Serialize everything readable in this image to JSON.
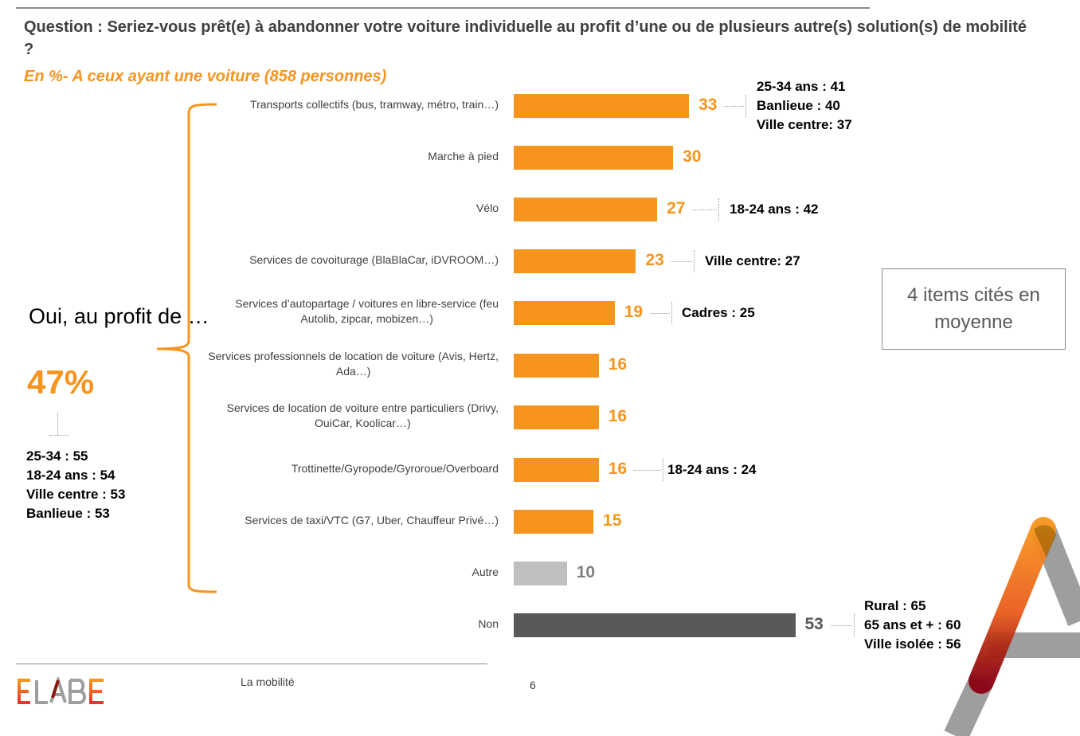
{
  "header": {
    "question": "Question : Seriez-vous prêt(e) à abandonner votre voiture individuelle au profit d’une ou de plusieurs autre(s) solution(s) de mobilité ?",
    "subtitle": "En  %- A ceux ayant une voiture (858 personnes)"
  },
  "summary": {
    "oui_label": "Oui, au profit de …",
    "oui_pct": "47%",
    "oui_callouts": [
      "25-34 : 55",
      "18-24 ans : 54",
      "Ville centre : 53",
      "Banlieue : 53"
    ],
    "avg_box": "4 items cités en moyenne"
  },
  "colors": {
    "accent": "#f7941d",
    "autre": "#bfbfbf",
    "non": "#595959",
    "autre_text": "#7f7f7f",
    "non_text": "#595959"
  },
  "chart_data": {
    "type": "bar",
    "orientation": "horizontal",
    "title": "Question : Seriez-vous prêt(e) à abandonner votre voiture individuelle au profit d’une ou de plusieurs autre(s) solution(s) de mobilité ?",
    "subtitle": "En  %- A ceux ayant une voiture (858 personnes)",
    "xlabel": "",
    "ylabel": "",
    "unit": "%",
    "categories": [
      "Transports collectifs (bus, tramway, métro, train…)",
      "Marche à pied",
      "Vélo",
      "Services de covoiturage (BlaBlaCar, iDVROOM…)",
      "Services d’autopartage / voitures en libre-service (feu Autolib, zipcar, mobizen…)",
      "Services professionnels de location de voiture (Avis, Hertz, Ada…)",
      "Services de location de voiture entre particuliers (Drivy, OuiCar, Koolicar…)",
      "Trottinette/Gyropode/Gyroroue/Overboard",
      "Services de taxi/VTC (G7, Uber, Chauffeur Privé…)",
      "Autre",
      "Non"
    ],
    "values": [
      33,
      30,
      27,
      23,
      19,
      16,
      16,
      16,
      15,
      10,
      53
    ],
    "kinds": [
      "oui",
      "oui",
      "oui",
      "oui",
      "oui",
      "oui",
      "oui",
      "oui",
      "oui",
      "autre",
      "non"
    ],
    "label_lines": [
      [
        "Transports collectifs (bus, tramway, métro, train…)"
      ],
      [
        "Marche à pied"
      ],
      [
        "Vélo"
      ],
      [
        "Services de covoiturage (BlaBlaCar, iDVROOM…)"
      ],
      [
        "Services d’autopartage / voitures en libre-service (feu",
        "Autolib, zipcar, mobizen…)"
      ],
      [
        "Services professionnels de location de voiture (Avis, Hertz,",
        "Ada…)"
      ],
      [
        "Services de location de voiture entre particuliers (Drivy,",
        "OuiCar, Koolicar…)"
      ],
      [
        "Trottinette/Gyropode/Gyroroue/Overboard"
      ],
      [
        "Services de taxi/VTC (G7, Uber, Chauffeur Privé…)"
      ],
      [
        "Autre"
      ],
      [
        "Non"
      ]
    ],
    "callouts": [
      [
        "25-34 ans : 41",
        "Banlieue : 40",
        "Ville centre: 37"
      ],
      [],
      [
        "18-24 ans : 42"
      ],
      [
        "Ville centre: 27"
      ],
      [
        "Cadres : 25"
      ],
      [],
      [],
      [
        "18-24 ans : 24"
      ],
      [],
      [],
      [
        "Rural : 65",
        "65 ans et + : 60",
        "Ville isolée : 56"
      ]
    ],
    "xlim": [
      0,
      60
    ],
    "grid": false,
    "legend": "none"
  },
  "footer": {
    "logo": "ELABE",
    "section": "La mobilité",
    "page": "6"
  }
}
